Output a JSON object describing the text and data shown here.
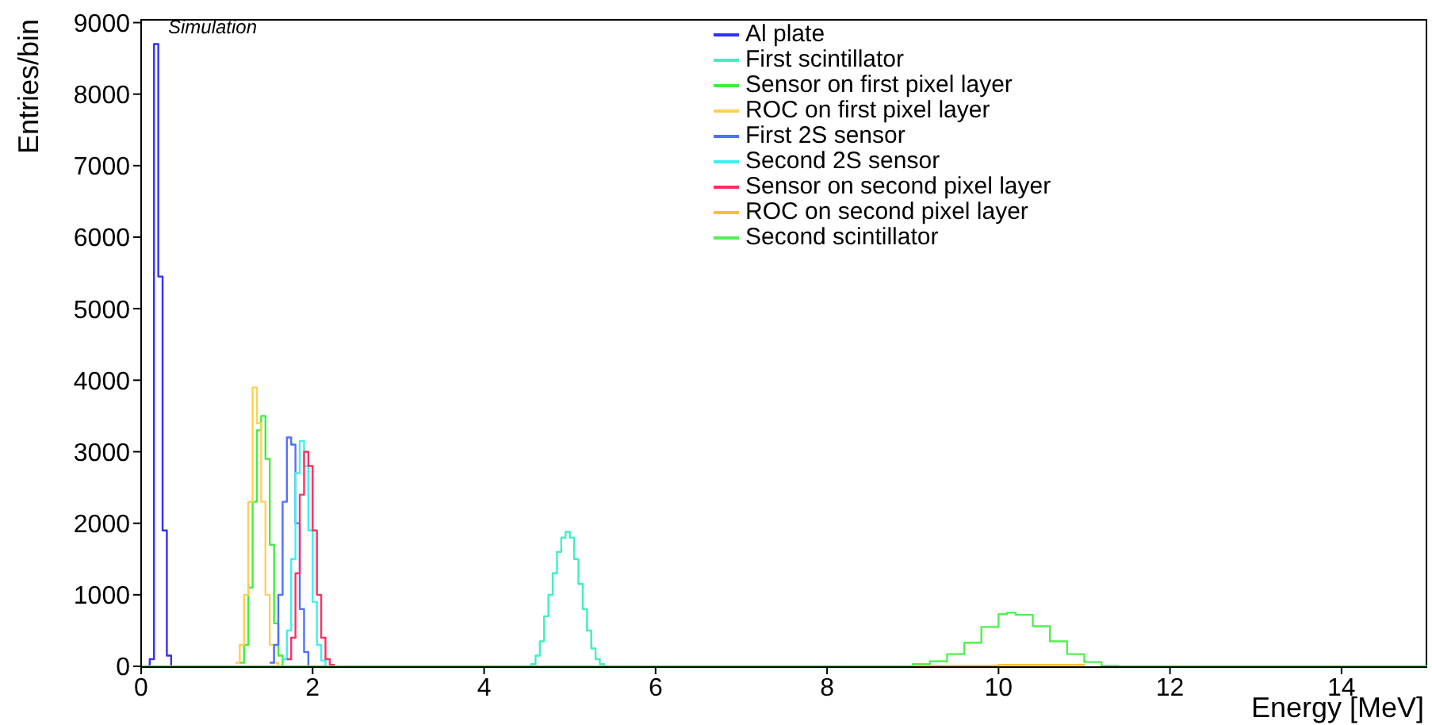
{
  "chart_data": {
    "type": "step",
    "xlabel": "Energy [MeV]",
    "ylabel": "Entries/bin",
    "annotations": [
      "Simulation"
    ],
    "xlim": [
      0,
      15
    ],
    "xticks": [
      0,
      2,
      4,
      6,
      8,
      10,
      12,
      14
    ],
    "ylim": [
      0,
      9050
    ],
    "yticks": [
      0,
      1000,
      2000,
      3000,
      4000,
      5000,
      6000,
      7000,
      8000,
      9000
    ],
    "grid": false,
    "legend": "top",
    "marker": "none",
    "line_style": "solid",
    "series": [
      {
        "name": "Al plate",
        "color": "#3030ff",
        "x": [
          0.05,
          0.1,
          0.15,
          0.2,
          0.25,
          0.3,
          0.35
        ],
        "values": [
          0,
          100,
          8700,
          5450,
          1900,
          150,
          0
        ]
      },
      {
        "name": "First scintillator",
        "color": "#40f0c0",
        "x": [
          4.5,
          4.55,
          4.6,
          4.65,
          4.7,
          4.75,
          4.8,
          4.85,
          4.9,
          4.95,
          5.0,
          5.05,
          5.1,
          5.15,
          5.2,
          5.25,
          5.3,
          5.35,
          5.4
        ],
        "values": [
          0,
          30,
          150,
          350,
          700,
          1000,
          1300,
          1600,
          1800,
          1880,
          1800,
          1500,
          1150,
          800,
          500,
          250,
          100,
          30,
          0
        ]
      },
      {
        "name": "Sensor on first pixel layer",
        "color": "#40f040",
        "x": [
          1.15,
          1.2,
          1.25,
          1.3,
          1.35,
          1.4,
          1.45,
          1.5,
          1.55,
          1.6,
          1.65
        ],
        "values": [
          50,
          300,
          1100,
          2300,
          3300,
          3500,
          2900,
          1700,
          600,
          150,
          0
        ]
      },
      {
        "name": "ROC on first pixel layer",
        "color": "#ffd050",
        "x": [
          1.1,
          1.15,
          1.2,
          1.25,
          1.3,
          1.35,
          1.4,
          1.45,
          1.5,
          1.55,
          1.6
        ],
        "values": [
          50,
          300,
          1000,
          2300,
          3900,
          3400,
          2300,
          1000,
          300,
          50,
          0
        ]
      },
      {
        "name": "First 2S sensor",
        "color": "#5070ff",
        "x": [
          1.5,
          1.55,
          1.6,
          1.65,
          1.7,
          1.75,
          1.8,
          1.85,
          1.9,
          1.95
        ],
        "values": [
          50,
          300,
          1000,
          2300,
          3200,
          3100,
          2000,
          800,
          200,
          0
        ]
      },
      {
        "name": "Second 2S sensor",
        "color": "#40f0f0",
        "x": [
          1.65,
          1.7,
          1.75,
          1.8,
          1.85,
          1.9,
          1.95,
          2.0,
          2.05,
          2.1,
          2.15
        ],
        "values": [
          100,
          500,
          1500,
          2700,
          3150,
          2800,
          1900,
          900,
          300,
          80,
          0
        ]
      },
      {
        "name": "Sensor on second pixel layer",
        "color": "#ff3060",
        "x": [
          1.7,
          1.75,
          1.8,
          1.85,
          1.9,
          1.95,
          2.0,
          2.05,
          2.1,
          2.15,
          2.2,
          2.25
        ],
        "values": [
          100,
          400,
          1300,
          2400,
          3000,
          2800,
          1900,
          1000,
          400,
          100,
          20,
          0
        ]
      },
      {
        "name": "ROC on second pixel layer",
        "color": "#ffc030",
        "x": [
          9.0,
          10.0,
          11.0
        ],
        "values": [
          10,
          20,
          10
        ]
      },
      {
        "name": "Second scintillator",
        "color": "#50f050",
        "x": [
          0,
          9.0,
          9.2,
          9.4,
          9.6,
          9.8,
          10.0,
          10.1,
          10.2,
          10.4,
          10.6,
          10.8,
          11.0,
          11.2,
          11.4,
          15
        ],
        "values": [
          0,
          30,
          70,
          170,
          330,
          550,
          730,
          750,
          720,
          560,
          350,
          170,
          60,
          10,
          0,
          0
        ]
      }
    ]
  }
}
